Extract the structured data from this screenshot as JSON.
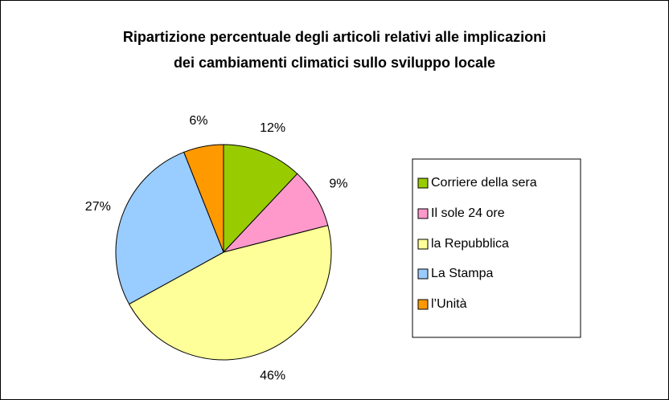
{
  "chart_data": {
    "type": "pie",
    "title": "Ripartizione percentuale degli articoli relativi alle implicazioni dei cambiamenti climatici sullo sviluppo locale",
    "categories": [
      "Corriere della sera",
      "Il sole 24 ore",
      "la Repubblica",
      "La Stampa",
      "l’Unità"
    ],
    "values": [
      12,
      9,
      46,
      27,
      6
    ],
    "value_labels": [
      "12%",
      "9%",
      "46%",
      "27%",
      "6%"
    ],
    "colors": [
      "#99cc00",
      "#ff99cc",
      "#ffff99",
      "#99ccff",
      "#ff9900"
    ],
    "legend": "right"
  }
}
